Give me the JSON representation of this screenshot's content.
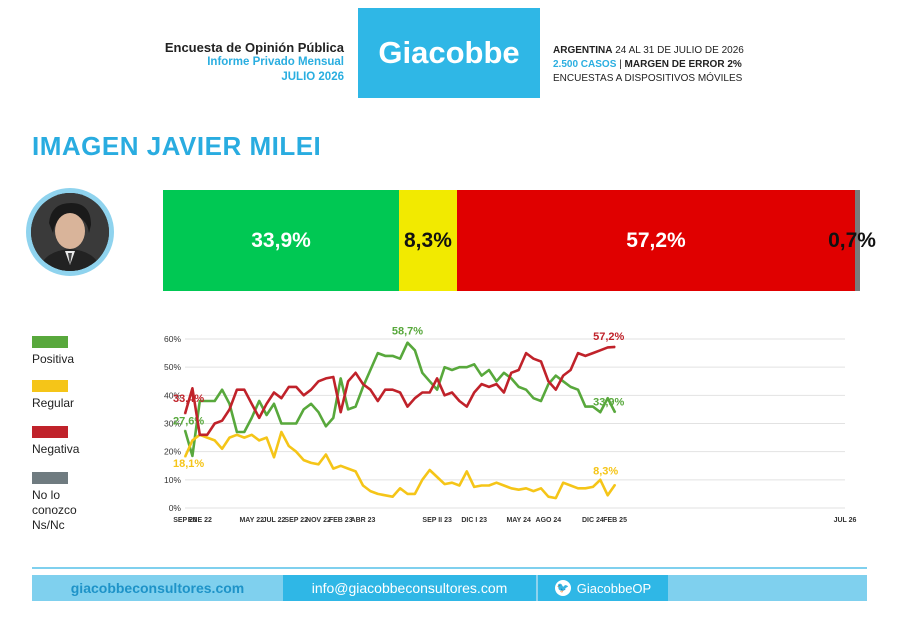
{
  "header": {
    "survey_title": "Encuesta de Opinión Pública",
    "report_type": "Informe Privado Mensual",
    "month": "JULIO 2026",
    "logo": "Giacobbe",
    "country": "ARGENTINA",
    "dates": "24 AL 31 DE JULIO DE 2026",
    "cases": "2.500 CASOS",
    "sep": "|",
    "margin": "MARGEN DE ERROR 2%",
    "method": "ENCUESTAS A DISPOSITIVOS MÓVILES"
  },
  "title": "IMAGEN JAVIER MILEI",
  "avatar_icon": "person-portrait-icon",
  "summary_bar": [
    {
      "label": "33,9%",
      "value": 33.9,
      "color": "#00c853"
    },
    {
      "label": "8,3%",
      "value": 8.3,
      "color": "#f2ea00"
    },
    {
      "label": "57,2%",
      "value": 57.2,
      "color": "#e00000"
    },
    {
      "label": "0,7%",
      "value": 0.7,
      "color": "#7a7a7a"
    }
  ],
  "legend": [
    {
      "label": "Positiva",
      "color": "#58a83c"
    },
    {
      "label": "Regular",
      "color": "#f5c518"
    },
    {
      "label": "Negativa",
      "color": "#c0222a"
    },
    {
      "label": "No lo conozco\nNs/Nc",
      "color": "#6f7b80"
    }
  ],
  "chart_data": {
    "type": "line",
    "ylim": [
      0,
      60
    ],
    "yticks": [
      "0%",
      "10%",
      "20%",
      "30%",
      "40%",
      "50%",
      "60%"
    ],
    "xtick_labels": [
      "SEP 20",
      "ENE 22",
      "MAY 22",
      "JUL 22",
      "SEP 22",
      "NOV 22",
      "FEB 23",
      "ABR 23",
      "SEP II 23",
      "DIC I 23",
      "MAY 24",
      "AGO 24",
      "DIC 24",
      "FEB 25",
      "JUL 26"
    ],
    "xtick_positions": [
      0,
      2,
      9,
      12,
      15,
      18,
      21,
      24,
      34,
      39,
      45,
      49,
      55,
      58,
      89
    ],
    "series": [
      {
        "name": "Positiva",
        "color": "#58a83c",
        "values": [
          27.6,
          18.5,
          38,
          38,
          38,
          42,
          37,
          27,
          27,
          32,
          38,
          33,
          37,
          30,
          30,
          30,
          35,
          37,
          34,
          29,
          32,
          46,
          35,
          36,
          43,
          49,
          55,
          54,
          54,
          53,
          58.7,
          56,
          48,
          45,
          42,
          50,
          49,
          50,
          50,
          51,
          47,
          49,
          45,
          48,
          46,
          43,
          42,
          39,
          38,
          44,
          47,
          45,
          43,
          42,
          36,
          36,
          34,
          39,
          33.9
        ],
        "first_label": "27,6%",
        "last_label": "33,9%"
      },
      {
        "name": "Regular",
        "color": "#f5c518",
        "values": [
          18.1,
          24,
          26,
          25,
          24,
          21,
          25,
          26,
          25,
          26,
          24,
          25,
          18,
          27,
          22,
          20,
          17,
          16,
          15.5,
          19,
          14,
          15,
          14,
          13,
          8,
          6,
          5,
          4.5,
          4,
          7,
          5,
          5,
          10,
          13.5,
          11,
          8.5,
          9,
          8,
          13,
          7.5,
          8,
          8,
          9,
          8,
          7,
          6.5,
          7,
          6,
          7,
          4,
          3.5,
          9,
          8,
          7,
          7,
          7.5,
          10,
          4.5,
          8.3
        ],
        "first_label": "18,1%",
        "last_label": "8,3%"
      },
      {
        "name": "Negativa",
        "color": "#c0222a",
        "values": [
          33.4,
          42.5,
          26,
          26,
          30,
          31,
          35,
          42,
          42,
          37,
          32,
          37,
          41,
          39,
          43,
          43,
          40,
          42,
          45,
          46,
          46.5,
          34,
          45,
          48,
          44,
          42,
          38,
          42,
          42,
          41,
          36,
          39,
          41,
          41,
          46,
          40,
          41,
          38,
          36,
          41,
          44,
          43,
          44,
          41,
          48,
          49,
          55,
          53,
          52,
          45,
          42,
          47,
          49,
          55,
          54,
          55,
          56,
          57,
          57.2
        ],
        "first_label": "33,4%",
        "last_label": "57,2%"
      }
    ],
    "annotations": [
      {
        "label": "58,7%",
        "series": "Positiva",
        "index": 30
      }
    ]
  },
  "footer": {
    "website": "giacobbeconsultores.com",
    "email": "info@giacobbeconsultores.com",
    "twitter_icon": "twitter-bird-icon",
    "twitter": "GiacobbeOP"
  }
}
